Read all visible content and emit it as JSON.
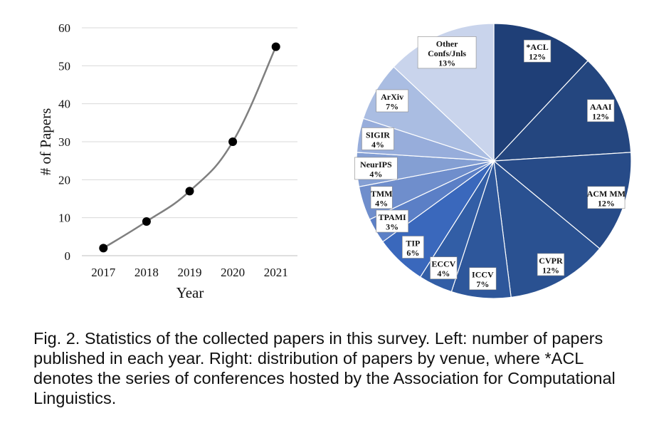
{
  "chart_data": [
    {
      "type": "line",
      "xlabel": "Year",
      "ylabel": "# of Papers",
      "x": [
        "2017",
        "2018",
        "2019",
        "2020",
        "2021"
      ],
      "series": [
        {
          "values": [
            2,
            9,
            17,
            30,
            55
          ]
        }
      ],
      "ylim": [
        0,
        60
      ],
      "yticks": [
        0,
        10,
        20,
        30,
        40,
        50,
        60
      ],
      "grid": true,
      "line_color": "#7f7f7f",
      "marker_color": "#000000"
    },
    {
      "type": "pie",
      "slices": [
        {
          "label": "*ACL",
          "value": 12,
          "display": "12%",
          "color": "#1f3f77"
        },
        {
          "label": "AAAI",
          "value": 12,
          "display": "12%",
          "color": "#24467f"
        },
        {
          "label": "ACM MM",
          "value": 12,
          "display": "12%",
          "color": "#274b88"
        },
        {
          "label": "CVPR",
          "value": 12,
          "display": "12%",
          "color": "#2a5191"
        },
        {
          "label": "ICCV",
          "value": 7,
          "display": "7%",
          "color": "#2e579b"
        },
        {
          "label": "ECCV",
          "value": 4,
          "display": "4%",
          "color": "#325ea6"
        },
        {
          "label": "TIP",
          "value": 6,
          "display": "6%",
          "color": "#3a68bc"
        },
        {
          "label": "TPAMI",
          "value": 3,
          "display": "3%",
          "color": "#5b7fc6"
        },
        {
          "label": "TMM",
          "value": 4,
          "display": "4%",
          "color": "#6f8ecc"
        },
        {
          "label": "NeurIPS",
          "value": 4,
          "display": "4%",
          "color": "#849fd3"
        },
        {
          "label": "SIGIR",
          "value": 4,
          "display": "4%",
          "color": "#97addb"
        },
        {
          "label": "ArXiv",
          "value": 7,
          "display": "7%",
          "color": "#aabde2"
        },
        {
          "label": "Other Confs/Jnls",
          "value": 13,
          "display": "13%",
          "color": "#c9d4ec"
        }
      ]
    }
  ],
  "caption": "Fig. 2. Statistics of the collected papers in this survey. Left: number of papers published in each year. Right: distribution of papers by venue, where *ACL denotes the series of conferences hosted by the Association for Computational Linguistics."
}
